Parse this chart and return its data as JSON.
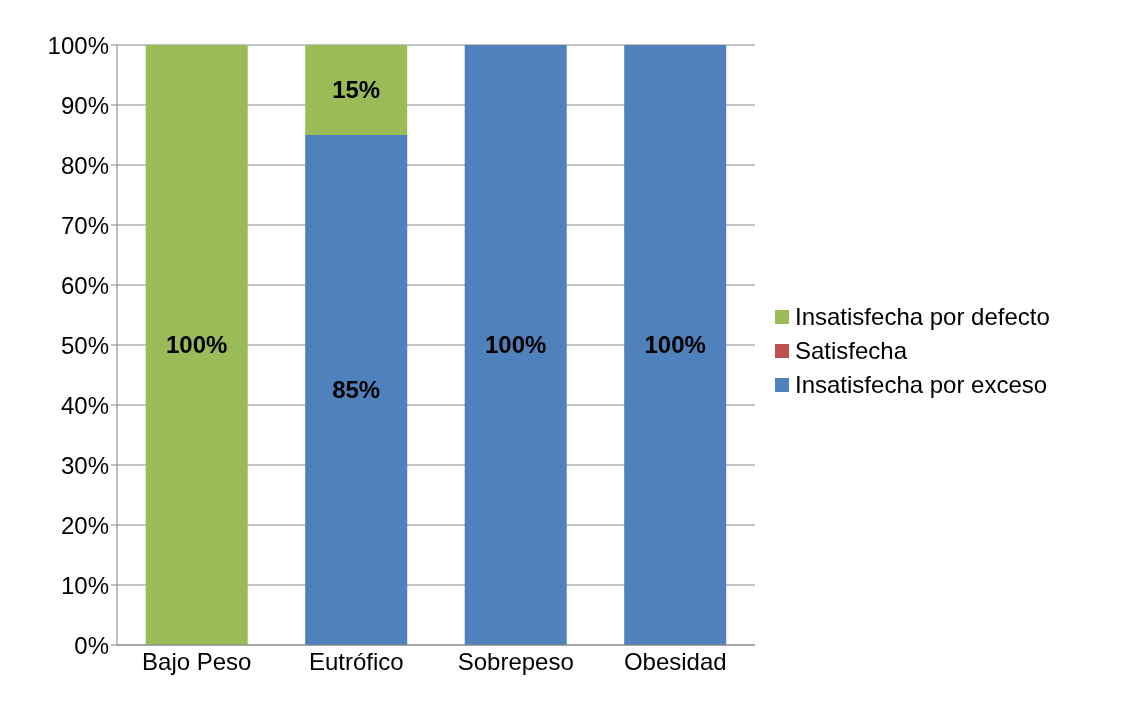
{
  "chart_data": {
    "type": "bar",
    "stacked": true,
    "categories": [
      "Bajo Peso",
      "Eutrófico",
      "Sobrepeso",
      "Obesidad"
    ],
    "series": [
      {
        "name": "Insatisfecha por exceso",
        "color": "#4f81bd",
        "values": [
          0,
          85,
          100,
          100
        ],
        "value_labels": [
          null,
          "85%",
          "100%",
          "100%"
        ]
      },
      {
        "name": "Satisfecha",
        "color": "#c0504d",
        "values": [
          0,
          0,
          0,
          0
        ],
        "value_labels": [
          null,
          null,
          null,
          null
        ]
      },
      {
        "name": "Insatisfecha por defecto",
        "color": "#9bbb59",
        "values": [
          100,
          15,
          0,
          0
        ],
        "value_labels": [
          "100%",
          "15%",
          null,
          null
        ]
      }
    ],
    "ylim": [
      0,
      100
    ],
    "yticks": [
      {
        "value": 0,
        "label": "0%"
      },
      {
        "value": 10,
        "label": "10%"
      },
      {
        "value": 20,
        "label": "20%"
      },
      {
        "value": 30,
        "label": "30%"
      },
      {
        "value": 40,
        "label": "40%"
      },
      {
        "value": 50,
        "label": "50%"
      },
      {
        "value": 60,
        "label": "60%"
      },
      {
        "value": 70,
        "label": "70%"
      },
      {
        "value": 80,
        "label": "80%"
      },
      {
        "value": 90,
        "label": "90%"
      },
      {
        "value": 100,
        "label": "100%"
      }
    ],
    "grid": "y",
    "legend": "right"
  }
}
